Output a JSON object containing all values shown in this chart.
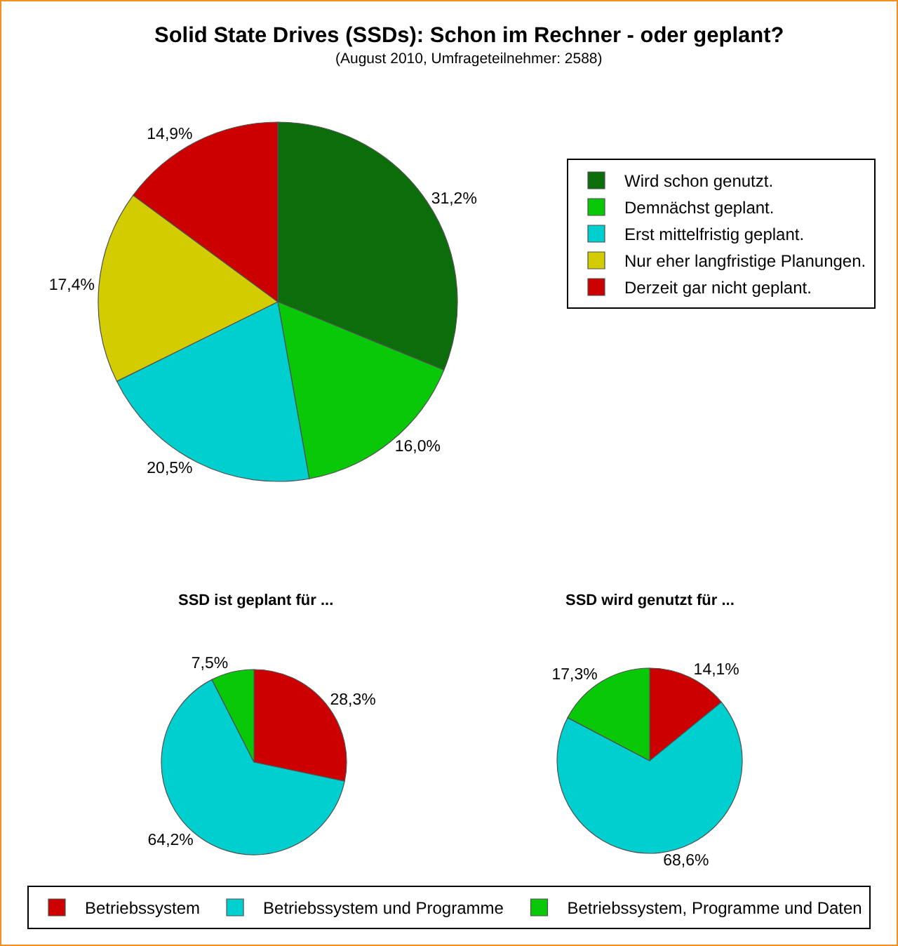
{
  "chart_data": [
    {
      "type": "pie",
      "title": "Solid State Drives (SSDs): Schon im Rechner - oder geplant?",
      "subtitle": "(August 2010, Umfrageteilnehmer: 2588)",
      "categories": [
        "Wird schon genutzt.",
        "Demnächst geplant.",
        "Erst mittelfristig geplant.",
        "Nur eher langfristige Planungen.",
        "Derzeit gar nicht geplant."
      ],
      "values": [
        31.2,
        16.0,
        20.5,
        17.4,
        14.9
      ],
      "colors": [
        "#0b6e0b",
        "#08c808",
        "#00cfcf",
        "#d2cc00",
        "#cc0000"
      ],
      "value_labels": [
        "31,2%",
        "16,0%",
        "20,5%",
        "17,4%",
        "14,9%"
      ],
      "legend": "right"
    },
    {
      "type": "pie",
      "categories": [
        "Betriebssystem",
        "Betriebssystem und Programme",
        "Betriebssystem, Programme und Daten"
      ],
      "colors": [
        "#cc0000",
        "#00cfcf",
        "#08c808"
      ],
      "series": [
        {
          "name": "SSD ist geplant für ...",
          "values": [
            28.3,
            64.2,
            7.5
          ],
          "value_labels": [
            "28,3%",
            "64,2%",
            "7,5%"
          ]
        },
        {
          "name": "SSD wird genutzt für ...",
          "values": [
            14.1,
            68.6,
            17.3
          ],
          "value_labels": [
            "14,1%",
            "68,6%",
            "17,3%"
          ]
        }
      ],
      "legend": "bottom"
    }
  ]
}
